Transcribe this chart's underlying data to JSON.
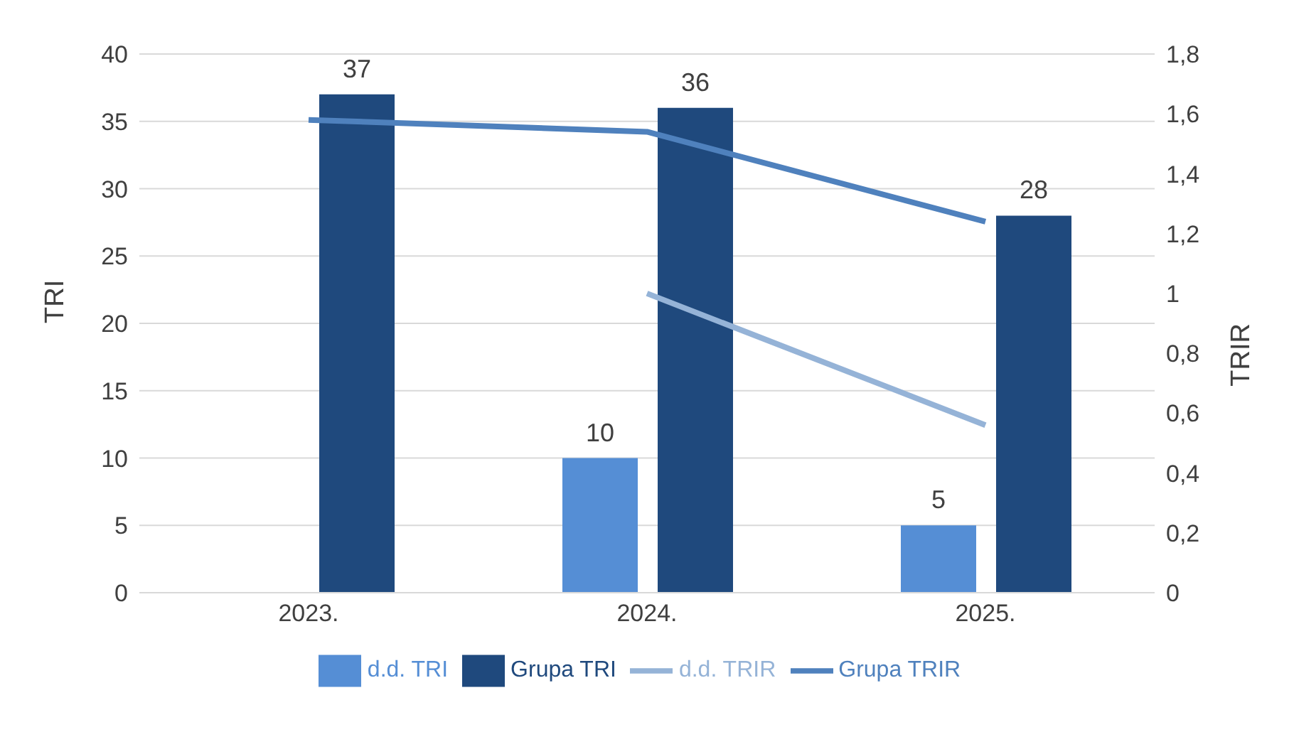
{
  "chart_data": {
    "type": "bar",
    "categories": [
      "2023.",
      "2024.",
      "2025."
    ],
    "ylabel": "TRI",
    "y2label": "TRIR",
    "ylim": [
      0,
      40
    ],
    "yticks": [
      0,
      5,
      10,
      15,
      20,
      25,
      30,
      35,
      40
    ],
    "y2lim": [
      0,
      1.8
    ],
    "y2ticks": [
      {
        "value": 0,
        "label": "0"
      },
      {
        "value": 0.2,
        "label": "0,2"
      },
      {
        "value": 0.4,
        "label": "0,4"
      },
      {
        "value": 0.6,
        "label": "0,6"
      },
      {
        "value": 0.8,
        "label": "0,8"
      },
      {
        "value": 1,
        "label": "1"
      },
      {
        "value": 1.2,
        "label": "1,2"
      },
      {
        "value": 1.4,
        "label": "1,4"
      },
      {
        "value": 1.6,
        "label": "1,6"
      },
      {
        "value": 1.8,
        "label": "1,8"
      }
    ],
    "grid": "y",
    "legend": "bottom",
    "marker": "none",
    "line_style": "solid",
    "series": [
      {
        "name": "d.d. TRI",
        "color": "#558ed5",
        "values": [
          null,
          10,
          5
        ],
        "value_labels": [
          null,
          "10",
          "5"
        ]
      },
      {
        "name": "Grupa TRI",
        "color": "#1f497d",
        "values": [
          37,
          36,
          28
        ],
        "value_labels": [
          "37",
          "36",
          "28"
        ]
      },
      {
        "name": "d.d. TRIR",
        "type": "line",
        "axis": "y2",
        "color": "#95b3d7",
        "values": [
          null,
          1.0,
          0.56
        ]
      },
      {
        "name": "Grupa TRIR",
        "type": "line",
        "axis": "y2",
        "color": "#4f81bd",
        "values": [
          1.58,
          1.54,
          1.24
        ]
      }
    ]
  }
}
